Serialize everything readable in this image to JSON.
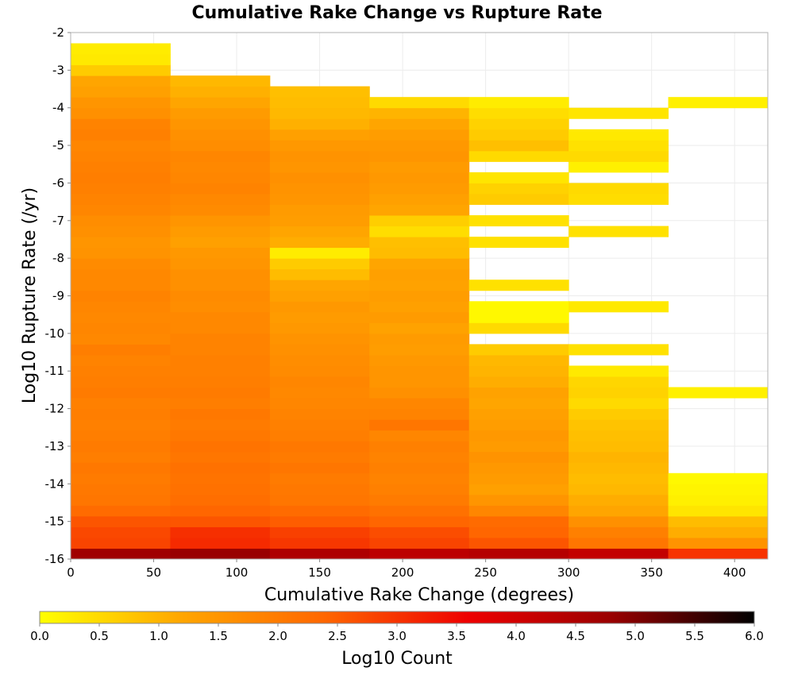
{
  "chart_data": {
    "type": "heatmap",
    "title": "Cumulative Rake Change vs Rupture Rate",
    "xlabel": "Cumulative Rake Change (degrees)",
    "ylabel": "Log10 Rupture Rate (/yr)",
    "xlim": [
      0,
      420
    ],
    "ylim": [
      -16,
      -2
    ],
    "x_ticks": [
      0,
      50,
      100,
      150,
      200,
      250,
      300,
      350,
      400
    ],
    "y_ticks": [
      -2,
      -3,
      -4,
      -5,
      -6,
      -7,
      -8,
      -9,
      -10,
      -11,
      -12,
      -13,
      -14,
      -15,
      -16
    ],
    "grid": true,
    "colorbar": {
      "label": "Log10 Count",
      "range": [
        0.0,
        6.0
      ],
      "ticks": [
        "0.0",
        "0.5",
        "1.0",
        "1.5",
        "2.0",
        "2.5",
        "3.0",
        "3.5",
        "4.0",
        "4.5",
        "5.0",
        "5.5",
        "6.0"
      ],
      "colors": [
        "#ffff00",
        "#ffa500",
        "#ff6600",
        "#ee0000",
        "#990000",
        "#000000"
      ],
      "placement": "bottom"
    },
    "x_bins": [
      {
        "x0": 0,
        "x1": 60
      },
      {
        "x0": 60,
        "x1": 120
      },
      {
        "x0": 120,
        "x1": 180
      },
      {
        "x0": 180,
        "x1": 240
      },
      {
        "x0": 240,
        "x1": 300
      },
      {
        "x0": 300,
        "x1": 360
      },
      {
        "x0": 360,
        "x1": 420
      }
    ],
    "y_bin_width": 0.28571428571,
    "columns": [
      [
        [
          -16.0,
          4.7
        ],
        [
          -15.714,
          2.8
        ],
        [
          -15.429,
          2.75
        ],
        [
          -15.143,
          2.6
        ],
        [
          -14.857,
          2.3
        ],
        [
          -14.571,
          2.1
        ],
        [
          -14.286,
          2.05
        ],
        [
          -14.0,
          2.0
        ],
        [
          -13.714,
          2.05
        ],
        [
          -13.429,
          1.95
        ],
        [
          -13.143,
          2.0
        ],
        [
          -12.857,
          1.95
        ],
        [
          -12.571,
          1.9
        ],
        [
          -12.286,
          1.95
        ],
        [
          -12.0,
          1.9
        ],
        [
          -11.714,
          2.0
        ],
        [
          -11.429,
          1.95
        ],
        [
          -11.143,
          1.9
        ],
        [
          -10.857,
          1.85
        ],
        [
          -10.571,
          1.95
        ],
        [
          -10.286,
          1.75
        ],
        [
          -10.0,
          1.8
        ],
        [
          -9.714,
          1.75
        ],
        [
          -9.429,
          1.8
        ],
        [
          -9.143,
          1.85
        ],
        [
          -8.857,
          1.75
        ],
        [
          -8.571,
          1.75
        ],
        [
          -8.286,
          1.7
        ],
        [
          -8.0,
          1.55
        ],
        [
          -7.714,
          1.5
        ],
        [
          -7.429,
          1.6
        ],
        [
          -7.143,
          1.65
        ],
        [
          -6.857,
          1.8
        ],
        [
          -6.571,
          1.85
        ],
        [
          -6.286,
          1.9
        ],
        [
          -6.0,
          1.95
        ],
        [
          -5.714,
          1.9
        ],
        [
          -5.429,
          1.85
        ],
        [
          -5.143,
          1.8
        ],
        [
          -4.857,
          1.9
        ],
        [
          -4.571,
          1.85
        ],
        [
          -4.286,
          1.6
        ],
        [
          -4.0,
          1.5
        ],
        [
          -3.714,
          1.3
        ],
        [
          -3.429,
          1.2
        ],
        [
          -3.143,
          0.7
        ],
        [
          -2.857,
          0.3
        ],
        [
          -2.571,
          0.25
        ]
      ],
      [
        [
          -16.0,
          4.8
        ],
        [
          -15.714,
          3.1
        ],
        [
          -15.429,
          3.05
        ],
        [
          -15.143,
          2.6
        ],
        [
          -14.857,
          2.4
        ],
        [
          -14.571,
          2.25
        ],
        [
          -14.286,
          2.2
        ],
        [
          -14.0,
          2.15
        ],
        [
          -13.714,
          2.2
        ],
        [
          -13.429,
          2.1
        ],
        [
          -13.143,
          2.15
        ],
        [
          -12.857,
          2.05
        ],
        [
          -12.571,
          2.0
        ],
        [
          -12.286,
          2.05
        ],
        [
          -12.0,
          1.95
        ],
        [
          -11.714,
          2.0
        ],
        [
          -11.429,
          1.95
        ],
        [
          -11.143,
          1.9
        ],
        [
          -10.857,
          1.9
        ],
        [
          -10.571,
          1.85
        ],
        [
          -10.286,
          1.85
        ],
        [
          -10.0,
          1.75
        ],
        [
          -9.714,
          1.75
        ],
        [
          -9.429,
          1.65
        ],
        [
          -9.143,
          1.7
        ],
        [
          -8.857,
          1.6
        ],
        [
          -8.571,
          1.6
        ],
        [
          -8.286,
          1.5
        ],
        [
          -8.0,
          1.45
        ],
        [
          -7.714,
          1.3
        ],
        [
          -7.429,
          1.4
        ],
        [
          -7.143,
          1.5
        ],
        [
          -6.857,
          1.7
        ],
        [
          -6.571,
          1.75
        ],
        [
          -6.286,
          1.85
        ],
        [
          -6.0,
          1.8
        ],
        [
          -5.714,
          1.75
        ],
        [
          -5.429,
          1.8
        ],
        [
          -5.143,
          1.65
        ],
        [
          -4.857,
          1.6
        ],
        [
          -4.571,
          1.5
        ],
        [
          -4.286,
          1.4
        ],
        [
          -4.0,
          1.2
        ],
        [
          -3.714,
          1.05
        ],
        [
          -3.429,
          0.95
        ]
      ],
      [
        [
          -16.0,
          4.5
        ],
        [
          -15.714,
          2.95
        ],
        [
          -15.429,
          2.85
        ],
        [
          -15.143,
          2.5
        ],
        [
          -14.857,
          2.3
        ],
        [
          -14.571,
          2.1
        ],
        [
          -14.286,
          2.05
        ],
        [
          -14.0,
          2.0
        ],
        [
          -13.714,
          2.1
        ],
        [
          -13.429,
          2.0
        ],
        [
          -13.143,
          2.05
        ],
        [
          -12.857,
          1.95
        ],
        [
          -12.571,
          1.9
        ],
        [
          -12.286,
          1.85
        ],
        [
          -12.0,
          1.8
        ],
        [
          -11.714,
          1.75
        ],
        [
          -11.429,
          1.8
        ],
        [
          -11.143,
          1.7
        ],
        [
          -10.857,
          1.65
        ],
        [
          -10.571,
          1.6
        ],
        [
          -10.286,
          1.55
        ],
        [
          -10.0,
          1.45
        ],
        [
          -9.714,
          1.4
        ],
        [
          -9.429,
          1.45
        ],
        [
          -9.143,
          1.3
        ],
        [
          -8.857,
          1.2
        ],
        [
          -8.571,
          0.9
        ],
        [
          -8.286,
          0.7
        ],
        [
          -8.0,
          0.25
        ],
        [
          -7.714,
          1.1
        ],
        [
          -7.429,
          1.2
        ],
        [
          -7.143,
          1.35
        ],
        [
          -6.857,
          1.4
        ],
        [
          -6.571,
          1.5
        ],
        [
          -6.286,
          1.55
        ],
        [
          -6.0,
          1.6
        ],
        [
          -5.714,
          1.5
        ],
        [
          -5.429,
          1.55
        ],
        [
          -5.143,
          1.45
        ],
        [
          -4.857,
          1.3
        ],
        [
          -4.571,
          1.05
        ],
        [
          -4.286,
          0.95
        ],
        [
          -4.0,
          0.9
        ],
        [
          -3.714,
          0.85
        ]
      ],
      [
        [
          -16.0,
          4.3
        ],
        [
          -15.714,
          2.8
        ],
        [
          -15.429,
          2.7
        ],
        [
          -15.143,
          2.4
        ],
        [
          -14.857,
          2.2
        ],
        [
          -14.571,
          2.0
        ],
        [
          -14.286,
          1.9
        ],
        [
          -14.0,
          1.85
        ],
        [
          -13.714,
          1.9
        ],
        [
          -13.429,
          1.85
        ],
        [
          -13.143,
          1.9
        ],
        [
          -12.857,
          1.8
        ],
        [
          -12.571,
          2.1
        ],
        [
          -12.286,
          1.85
        ],
        [
          -12.0,
          1.8
        ],
        [
          -11.714,
          1.6
        ],
        [
          -11.429,
          1.5
        ],
        [
          -11.143,
          1.5
        ],
        [
          -10.857,
          1.45
        ],
        [
          -10.571,
          1.35
        ],
        [
          -10.286,
          1.4
        ],
        [
          -10.0,
          1.25
        ],
        [
          -9.714,
          1.4
        ],
        [
          -9.429,
          1.3
        ],
        [
          -9.143,
          1.35
        ],
        [
          -8.857,
          1.25
        ],
        [
          -8.571,
          1.3
        ],
        [
          -8.286,
          1.2
        ],
        [
          -8.0,
          0.9
        ],
        [
          -7.714,
          0.85
        ],
        [
          -7.429,
          0.45
        ],
        [
          -7.143,
          0.65
        ],
        [
          -6.857,
          1.2
        ],
        [
          -6.571,
          1.3
        ],
        [
          -6.286,
          1.4
        ],
        [
          -6.0,
          1.45
        ],
        [
          -5.714,
          1.4
        ],
        [
          -5.429,
          1.5
        ],
        [
          -5.143,
          1.45
        ],
        [
          -4.857,
          1.35
        ],
        [
          -4.571,
          1.2
        ],
        [
          -4.286,
          1.0
        ],
        [
          -4.0,
          0.5
        ]
      ],
      [
        [
          -16.0,
          4.4
        ],
        [
          -15.714,
          2.6
        ],
        [
          -15.429,
          2.4
        ],
        [
          -15.143,
          2.3
        ],
        [
          -14.857,
          1.8
        ],
        [
          -14.571,
          1.5
        ],
        [
          -14.286,
          1.3
        ],
        [
          -14.0,
          1.4
        ],
        [
          -13.714,
          1.45
        ],
        [
          -13.429,
          1.55
        ],
        [
          -13.143,
          1.4
        ],
        [
          -12.857,
          1.45
        ],
        [
          -12.571,
          1.35
        ],
        [
          -12.286,
          1.3
        ],
        [
          -12.0,
          1.2
        ],
        [
          -11.714,
          1.25
        ],
        [
          -11.429,
          1.1
        ],
        [
          -11.143,
          1.0
        ],
        [
          -10.857,
          0.95
        ],
        [
          -10.571,
          0.7
        ],
        [
          -10.0,
          0.5
        ],
        [
          -9.714,
          0.1
        ],
        [
          -9.429,
          0.1
        ],
        [
          -8.857,
          0.4
        ],
        [
          -7.714,
          0.4
        ],
        [
          -7.143,
          0.4
        ],
        [
          -6.571,
          0.7
        ],
        [
          -6.286,
          0.6
        ],
        [
          -6.0,
          0.35
        ],
        [
          -5.429,
          0.5
        ],
        [
          -5.143,
          0.85
        ],
        [
          -4.857,
          0.7
        ],
        [
          -4.571,
          0.6
        ],
        [
          -4.286,
          0.45
        ],
        [
          -4.0,
          0.25
        ]
      ],
      [
        [
          -16.0,
          4.2
        ],
        [
          -15.714,
          2.1
        ],
        [
          -15.429,
          1.9
        ],
        [
          -15.143,
          1.6
        ],
        [
          -14.857,
          1.2
        ],
        [
          -14.571,
          1.1
        ],
        [
          -14.286,
          0.95
        ],
        [
          -14.0,
          0.9
        ],
        [
          -13.714,
          0.95
        ],
        [
          -13.429,
          1.0
        ],
        [
          -13.143,
          0.9
        ],
        [
          -12.857,
          0.85
        ],
        [
          -12.571,
          0.8
        ],
        [
          -12.286,
          0.7
        ],
        [
          -12.0,
          0.5
        ],
        [
          -11.714,
          0.6
        ],
        [
          -11.429,
          0.55
        ],
        [
          -11.143,
          0.3
        ],
        [
          -10.571,
          0.4
        ],
        [
          -9.429,
          0.3
        ],
        [
          -7.429,
          0.4
        ],
        [
          -6.571,
          0.45
        ],
        [
          -6.286,
          0.5
        ],
        [
          -5.714,
          0.2
        ],
        [
          -5.429,
          0.5
        ],
        [
          -5.143,
          0.4
        ],
        [
          -4.857,
          0.3
        ],
        [
          -4.286,
          0.35
        ]
      ],
      [
        [
          -16.0,
          3.0
        ],
        [
          -15.714,
          1.55
        ],
        [
          -15.429,
          1.1
        ],
        [
          -15.143,
          0.9
        ],
        [
          -14.857,
          0.35
        ],
        [
          -14.571,
          0.2
        ],
        [
          -14.286,
          0.15
        ],
        [
          -14.0,
          0.1
        ],
        [
          -11.714,
          0.2
        ],
        [
          -4.0,
          0.2
        ]
      ]
    ]
  }
}
